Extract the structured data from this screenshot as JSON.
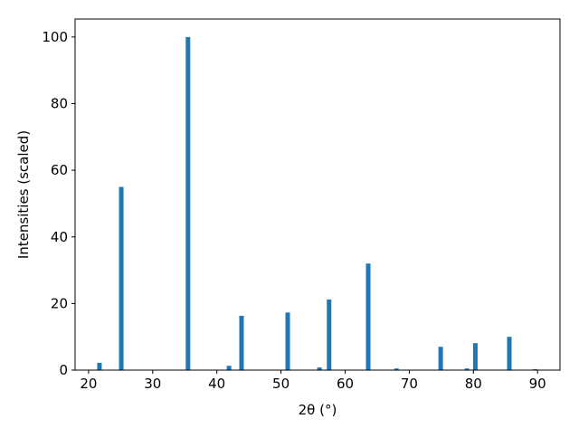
{
  "chart_data": {
    "type": "bar",
    "x_label": "2θ (°)",
    "y_label": "Intensities (scaled)",
    "color": "#1f77b4",
    "x": [
      21.7,
      25.1,
      35.5,
      41.9,
      43.85,
      51.05,
      56.0,
      57.5,
      63.6,
      68.0,
      74.9,
      79.0,
      80.3,
      85.6,
      89.6
    ],
    "values": [
      2.2,
      55,
      100,
      1.3,
      16.3,
      17.3,
      0.8,
      21.2,
      32,
      0.5,
      7,
      0.5,
      8.1,
      10,
      0.3
    ],
    "xlim": [
      17.9,
      93.5
    ],
    "xticks": [
      20,
      30,
      40,
      50,
      60,
      70,
      80,
      90
    ],
    "ylim": [
      0,
      105.4
    ],
    "yticks": [
      0,
      20,
      40,
      60,
      80,
      100
    ]
  }
}
